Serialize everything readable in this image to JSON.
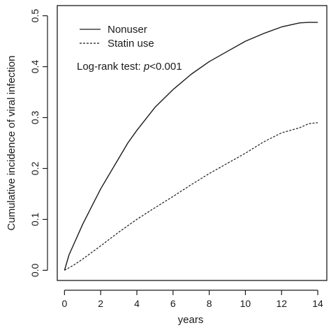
{
  "chart_data": {
    "type": "line",
    "title": "",
    "xlabel": "years",
    "ylabel": "Cumulative incidence of viral infection",
    "xlim": [
      -0.4,
      14.5
    ],
    "ylim": [
      -0.02,
      0.52
    ],
    "x_ticks": [
      0,
      2,
      4,
      6,
      8,
      10,
      12,
      14
    ],
    "x_tick_labels": [
      "0",
      "2",
      "4",
      "6",
      "8",
      "10",
      "12",
      "14"
    ],
    "y_ticks": [
      0.0,
      0.1,
      0.2,
      0.3,
      0.4,
      0.5
    ],
    "y_tick_labels": [
      "0.0",
      "0.1",
      "0.2",
      "0.3",
      "0.4",
      "0.5"
    ],
    "grid": false,
    "legend_position": "top-left",
    "annotation": {
      "text_prefix": "Log-rank test: ",
      "p_symbol": "p",
      "text_suffix": "<0.001"
    },
    "series": [
      {
        "name": "Nonuser",
        "line_style": "solid",
        "color": "#1a1a1a",
        "x": [
          0,
          0.25,
          0.5,
          1,
          1.5,
          2,
          2.5,
          3,
          3.5,
          4,
          5,
          6,
          7,
          8,
          9,
          10,
          11,
          12,
          13,
          13.5,
          14
        ],
        "y": [
          0,
          0.03,
          0.05,
          0.09,
          0.125,
          0.16,
          0.19,
          0.22,
          0.25,
          0.275,
          0.32,
          0.355,
          0.385,
          0.41,
          0.43,
          0.45,
          0.465,
          0.478,
          0.486,
          0.487,
          0.487
        ]
      },
      {
        "name": "Statin use",
        "line_style": "dashed",
        "color": "#1a1a1a",
        "x": [
          0,
          0.5,
          1,
          2,
          3,
          4,
          5,
          6,
          7,
          8,
          9,
          10,
          11,
          12,
          13,
          13.5,
          14
        ],
        "y": [
          0,
          0.01,
          0.022,
          0.048,
          0.075,
          0.1,
          0.123,
          0.145,
          0.168,
          0.19,
          0.21,
          0.23,
          0.252,
          0.27,
          0.28,
          0.288,
          0.29
        ]
      }
    ]
  }
}
